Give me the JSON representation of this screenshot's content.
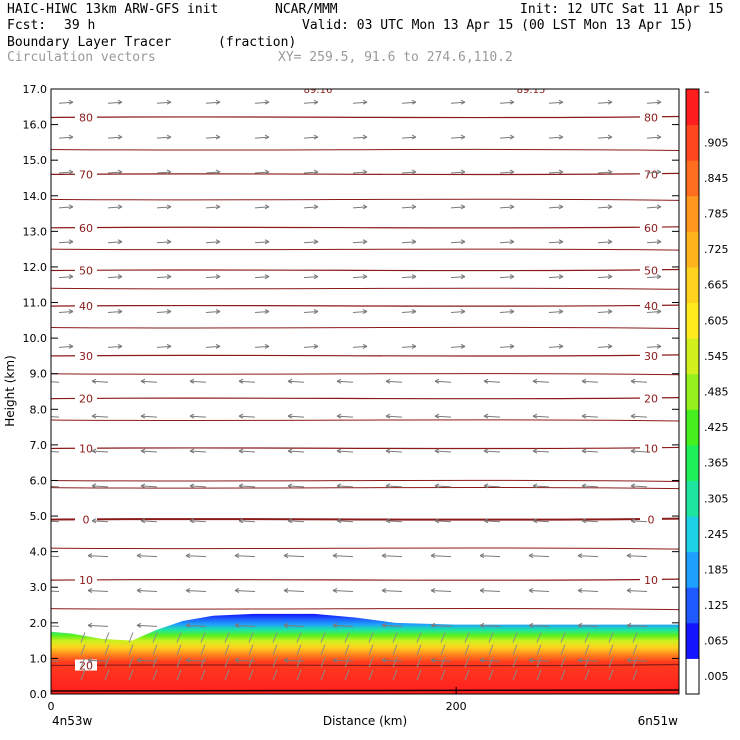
{
  "header": {
    "model": "HAIC-HIWC 13km ARW-GFS init",
    "org": "NCAR/MMM",
    "init": "Init: 12 UTC Sat 11 Apr 15",
    "fcst_label": "Fcst:",
    "fcst_value": "39 h",
    "valid": "Valid: 03 UTC Mon 13 Apr 15 (00 LST Mon 13 Apr 15)",
    "field": "Boundary Layer Tracer",
    "field_units": "(fraction)",
    "vector_label": "Circulation vectors",
    "xsec_coords": "XY= 259.5, 91.6 to 274.6,110.2"
  },
  "chart_data": {
    "type": "heatmap",
    "ylabel": "Height (km)",
    "xlabel": "Distance (km)",
    "ylim": [
      0,
      17
    ],
    "xlim": [
      0,
      310
    ],
    "yticks": [
      "0.0",
      "1.0",
      "2.0",
      "3.0",
      "4.0",
      "5.0",
      "6.0",
      "7.0",
      "8.0",
      "9.0",
      "10.0",
      "11.0",
      "12.0",
      "13.0",
      "14.0",
      "15.0",
      "16.0",
      "17.0"
    ],
    "xticks": [
      {
        "value": 0,
        "label": "0"
      },
      {
        "value": 200,
        "label": "200"
      }
    ],
    "x_endpoints": {
      "left": "4n53w",
      "right": "6n51w"
    },
    "colorbar": {
      "labels": [
        ".005",
        ".065",
        ".125",
        ".185",
        ".245",
        ".305",
        ".365",
        ".425",
        ".485",
        ".545",
        ".605",
        ".665",
        ".725",
        ".785",
        ".845",
        ".905"
      ],
      "top_label": "–",
      "colors": [
        "#ffffff",
        "#1414ff",
        "#1e5aff",
        "#1ea0ff",
        "#1ed2e6",
        "#1ee6a0",
        "#1ef05a",
        "#46f01e",
        "#96f01e",
        "#d2f01e",
        "#ffeb1e",
        "#ffd21e",
        "#ffb41e",
        "#ff961e",
        "#ff6e1e",
        "#ff461e",
        "#ff1e1e"
      ]
    },
    "contours": [
      {
        "label": "80",
        "height": 16.2
      },
      {
        "label": "70",
        "height": 14.6
      },
      {
        "label": "60",
        "height": 13.1
      },
      {
        "label": "50",
        "height": 11.9
      },
      {
        "label": "40",
        "height": 10.9
      },
      {
        "label": "30",
        "height": 9.5
      },
      {
        "label": "20",
        "height": 8.3
      },
      {
        "label": "10",
        "height": 6.9
      },
      {
        "label": "0",
        "height": 4.9
      },
      {
        "label": "10",
        "height": 3.2
      },
      {
        "label": "20",
        "height": 0.8
      }
    ],
    "top_contour_labels": [
      "89.16",
      "89.15"
    ],
    "tracer_top_km": [
      {
        "x": 0,
        "h": 1.75
      },
      {
        "x": 10,
        "h": 1.7
      },
      {
        "x": 25,
        "h": 1.55
      },
      {
        "x": 40,
        "h": 1.5
      },
      {
        "x": 52,
        "h": 1.8
      },
      {
        "x": 65,
        "h": 2.05
      },
      {
        "x": 80,
        "h": 2.2
      },
      {
        "x": 100,
        "h": 2.25
      },
      {
        "x": 130,
        "h": 2.25
      },
      {
        "x": 150,
        "h": 2.15
      },
      {
        "x": 170,
        "h": 2.0
      },
      {
        "x": 200,
        "h": 1.95
      },
      {
        "x": 240,
        "h": 1.95
      },
      {
        "x": 280,
        "h": 1.95
      },
      {
        "x": 310,
        "h": 1.95
      }
    ]
  }
}
